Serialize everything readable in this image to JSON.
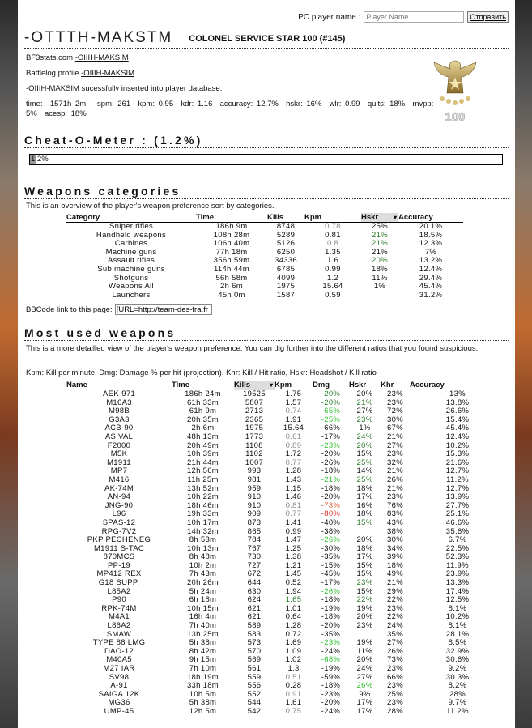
{
  "search": {
    "label": "PC player name :",
    "placeholder": "Player Name",
    "button": "Отправить"
  },
  "player": {
    "name": "-OTTTH-MAKSTM",
    "rank": "COLONEL SERVICE STAR 100 (#145)",
    "bf3stats_label": "BF3stats.com",
    "bf3stats_link": "-OIIIH-MAKSIM",
    "battlelog_label": "Battlelog profile",
    "battlelog_link": "-OIIIH-MAKSIM",
    "insert_msg": "-OIIIH-MAKSIM sucessfully inserted into player database.",
    "stats": "time:  1571h 2m   spm: 261  kpm: 0.95  kdr: 1.16  accuracy: 12.7%  hskr: 16%  wlr: 0.99  quits: 18%  mvpp: 5%  acesp: 18%",
    "medal_number": "100",
    "medal_icon": "colonel-eagle-medal"
  },
  "cheat": {
    "heading": "Cheat-O-Meter : (1.2%)",
    "value_label": "1.2%",
    "percent": 1.2
  },
  "categories": {
    "heading": "Weapons categories",
    "desc": "This is an overview of the player's weapon preference sort by categories.",
    "columns": [
      "Category",
      "Time",
      "Kills",
      "Kpm",
      "Hskr",
      "Accuracy"
    ],
    "sorted_column": "Hskr",
    "rows": [
      {
        "c": [
          "Sniper rifles",
          "186h 9m",
          "8748",
          "0.78",
          "25%",
          "20.1%"
        ],
        "hl": [
          "",
          "",
          "",
          "m",
          "",
          ""
        ]
      },
      {
        "c": [
          "Handheld weapons",
          "108h 28m",
          "5289",
          "0.81",
          "21%",
          "18.5%"
        ],
        "hl": [
          "",
          "",
          "",
          "",
          "dg",
          ""
        ]
      },
      {
        "c": [
          "Carbines",
          "106h 40m",
          "5126",
          "0.8",
          "21%",
          "12.3%"
        ],
        "hl": [
          "",
          "",
          "",
          "m",
          "dg",
          ""
        ]
      },
      {
        "c": [
          "Machine guns",
          "77h 18m",
          "6250",
          "1.35",
          "21%",
          "7%"
        ],
        "hl": [
          "",
          "",
          "",
          "",
          "",
          ""
        ]
      },
      {
        "c": [
          "Assault rifles",
          "356h 59m",
          "34336",
          "1.6",
          "20%",
          "13.2%"
        ],
        "hl": [
          "",
          "",
          "",
          "",
          "dg",
          ""
        ]
      },
      {
        "c": [
          "Sub machine guns",
          "114h 44m",
          "6785",
          "0.99",
          "18%",
          "12.4%"
        ],
        "hl": [
          "",
          "",
          "",
          "",
          "",
          ""
        ]
      },
      {
        "c": [
          "Shotguns",
          "56h 58m",
          "4099",
          "1.2",
          "11%",
          "29.4%"
        ],
        "hl": [
          "",
          "",
          "",
          "",
          "",
          ""
        ]
      },
      {
        "c": [
          "Weapons All",
          "2h 6m",
          "1975",
          "15.64",
          "1%",
          "45.4%"
        ],
        "hl": [
          "",
          "",
          "",
          "",
          "",
          ""
        ]
      },
      {
        "c": [
          "Launchers",
          "45h 0m",
          "1587",
          "0.59",
          "",
          "31.2%"
        ],
        "hl": [
          "",
          "",
          "",
          "",
          "",
          ""
        ]
      }
    ]
  },
  "bbcode": {
    "label": "BBCode link to this page:",
    "value": "[URL=http://team-des-fra.fr"
  },
  "weapons": {
    "heading": "Most used weapons",
    "desc": "This is a more detailled view of the player's weapon preference. You can dig further into the different ratios that you found suspicious.",
    "legend": "Kpm: Kill per minute, Dmg: Damage % per hit (projection), Khr: Kill / Hit ratio, Hskr: Headshot / Kill ratio",
    "columns": [
      "Name",
      "Time",
      "Kills",
      "Kpm",
      "Dmg",
      "Hskr",
      "Khr",
      "Accuracy"
    ],
    "sorted_column": "Kills",
    "rows": [
      {
        "c": [
          "AEK-971",
          "186h 24m",
          "19525",
          "1.75",
          "-20%",
          "20%",
          "23%",
          "13%"
        ],
        "hl": [
          "",
          "",
          "",
          "",
          "dg",
          "",
          "",
          ""
        ]
      },
      {
        "c": [
          "M16A3",
          "61h 33m",
          "5807",
          "1.57",
          "-20%",
          "21%",
          "23%",
          "13.8%"
        ],
        "hl": [
          "",
          "",
          "",
          "",
          "dg",
          "dg",
          "",
          ""
        ]
      },
      {
        "c": [
          "M98B",
          "61h 9m",
          "2713",
          "0.74",
          "-65%",
          "27%",
          "72%",
          "26.6%"
        ],
        "hl": [
          "",
          "",
          "",
          "m",
          "g",
          "",
          "",
          ""
        ]
      },
      {
        "c": [
          "G3A3",
          "20h 35m",
          "2365",
          "1.91",
          "-25%",
          "23%",
          "30%",
          "15.4%"
        ],
        "hl": [
          "",
          "",
          "",
          "",
          "g",
          "dg",
          "",
          ""
        ]
      },
      {
        "c": [
          "ACB-90",
          "2h 6m",
          "1975",
          "15.64",
          "-66%",
          "1%",
          "67%",
          "45.4%"
        ],
        "hl": [
          "",
          "",
          "",
          "",
          "",
          "",
          "",
          ""
        ]
      },
      {
        "c": [
          "AS VAL",
          "48h 13m",
          "1773",
          "0.61",
          "-17%",
          "24%",
          "21%",
          "12.4%"
        ],
        "hl": [
          "",
          "",
          "",
          "m",
          "",
          "dg",
          "",
          ""
        ]
      },
      {
        "c": [
          "F2000",
          "20h 49m",
          "1108",
          "0.89",
          "-23%",
          "20%",
          "27%",
          "10.2%"
        ],
        "hl": [
          "",
          "",
          "",
          "m",
          "g",
          "dg",
          "",
          ""
        ]
      },
      {
        "c": [
          "M5K",
          "10h 39m",
          "1102",
          "1.72",
          "-20%",
          "15%",
          "23%",
          "15.3%"
        ],
        "hl": [
          "",
          "",
          "",
          "",
          "",
          "",
          "",
          ""
        ]
      },
      {
        "c": [
          "M1911",
          "21h 44m",
          "1007",
          "0.77",
          "-26%",
          "25%",
          "32%",
          "21.6%"
        ],
        "hl": [
          "",
          "",
          "",
          "m",
          "",
          "dg",
          "",
          ""
        ]
      },
      {
        "c": [
          "MP7",
          "12h 56m",
          "993",
          "1.28",
          "-18%",
          "14%",
          "21%",
          "12.7%"
        ],
        "hl": [
          "",
          "",
          "",
          "",
          "",
          "",
          "",
          ""
        ]
      },
      {
        "c": [
          "M416",
          "11h 25m",
          "981",
          "1.43",
          "-21%",
          "25%",
          "26%",
          "11.2%"
        ],
        "hl": [
          "",
          "",
          "",
          "",
          "g",
          "dg",
          "",
          ""
        ]
      },
      {
        "c": [
          "AK-74M",
          "13h 52m",
          "959",
          "1.15",
          "-18%",
          "18%",
          "21%",
          "12.7%"
        ],
        "hl": [
          "",
          "",
          "",
          "",
          "",
          "",
          "",
          ""
        ]
      },
      {
        "c": [
          "AN-94",
          "10h 22m",
          "910",
          "1.46",
          "-20%",
          "17%",
          "23%",
          "13.9%"
        ],
        "hl": [
          "",
          "",
          "",
          "",
          "",
          "",
          "",
          ""
        ]
      },
      {
        "c": [
          "JNG-90",
          "18h 46m",
          "910",
          "0.81",
          "-73%",
          "16%",
          "76%",
          "27.7%"
        ],
        "hl": [
          "",
          "",
          "",
          "m",
          "o",
          "",
          "",
          ""
        ]
      },
      {
        "c": [
          "L96",
          "19h 33m",
          "909",
          "0.77",
          "-80%",
          "18%",
          "83%",
          "25.1%"
        ],
        "hl": [
          "",
          "",
          "",
          "m",
          "r",
          "",
          "",
          ""
        ]
      },
      {
        "c": [
          "SPAS-12",
          "10h 17m",
          "873",
          "1.41",
          "-40%",
          "15%",
          "43%",
          "46.6%"
        ],
        "hl": [
          "",
          "",
          "",
          "",
          "",
          "dg",
          "",
          ""
        ]
      },
      {
        "c": [
          "RPG-7V2",
          "14h 32m",
          "865",
          "0.99",
          "-38%",
          "",
          "38%",
          "35.6%"
        ],
        "hl": [
          "",
          "",
          "",
          "",
          "",
          "",
          "",
          ""
        ]
      },
      {
        "c": [
          "PKP PECHENEG",
          "8h 53m",
          "784",
          "1.47",
          "-26%",
          "20%",
          "30%",
          "6.7%"
        ],
        "hl": [
          "",
          "",
          "",
          "",
          "g",
          "",
          "",
          ""
        ]
      },
      {
        "c": [
          "M1911 S-TAC",
          "10h 13m",
          "767",
          "1.25",
          "-30%",
          "18%",
          "34%",
          "22.5%"
        ],
        "hl": [
          "",
          "",
          "",
          "",
          "",
          "",
          "",
          ""
        ]
      },
      {
        "c": [
          "870MCS",
          "8h 48m",
          "730",
          "1.38",
          "-35%",
          "17%",
          "39%",
          "52.3%"
        ],
        "hl": [
          "",
          "",
          "",
          "",
          "",
          "",
          "",
          ""
        ]
      },
      {
        "c": [
          "PP-19",
          "10h 2m",
          "727",
          "1.21",
          "-15%",
          "15%",
          "18%",
          "11.9%"
        ],
        "hl": [
          "",
          "",
          "",
          "",
          "",
          "",
          "",
          ""
        ]
      },
      {
        "c": [
          "MP412 REX",
          "7h 43m",
          "672",
          "1.45",
          "-45%",
          "15%",
          "49%",
          "23.9%"
        ],
        "hl": [
          "",
          "",
          "",
          "",
          "",
          "",
          "",
          ""
        ]
      },
      {
        "c": [
          "G18 SUPP.",
          "20h 26m",
          "644",
          "0.52",
          "-17%",
          "23%",
          "21%",
          "13.3%"
        ],
        "hl": [
          "",
          "",
          "",
          "",
          "",
          "dg",
          "",
          ""
        ]
      },
      {
        "c": [
          "L85A2",
          "5h 24m",
          "630",
          "1.94",
          "-26%",
          "15%",
          "29%",
          "17.4%"
        ],
        "hl": [
          "",
          "",
          "",
          "",
          "g",
          "",
          "",
          ""
        ]
      },
      {
        "c": [
          "P90",
          "6h 18m",
          "624",
          "1.65",
          "-18%",
          "22%",
          "22%",
          "12.5%"
        ],
        "hl": [
          "",
          "",
          "",
          "dg",
          "",
          "dg",
          "",
          ""
        ]
      },
      {
        "c": [
          "RPK-74M",
          "10h 15m",
          "621",
          "1.01",
          "-19%",
          "19%",
          "23%",
          "8.1%"
        ],
        "hl": [
          "",
          "",
          "",
          "",
          "",
          "",
          "",
          ""
        ]
      },
      {
        "c": [
          "M4A1",
          "16h 4m",
          "621",
          "0.64",
          "-18%",
          "20%",
          "22%",
          "10.2%"
        ],
        "hl": [
          "",
          "",
          "",
          "",
          "",
          "",
          "",
          ""
        ]
      },
      {
        "c": [
          "L86A2",
          "7h 40m",
          "589",
          "1.28",
          "-20%",
          "23%",
          "24%",
          "8.1%"
        ],
        "hl": [
          "",
          "",
          "",
          "",
          "",
          "",
          "",
          ""
        ]
      },
      {
        "c": [
          "SMAW",
          "13h 25m",
          "583",
          "0.72",
          "-35%",
          "",
          "35%",
          "28.1%"
        ],
        "hl": [
          "",
          "",
          "",
          "",
          "",
          "",
          "",
          ""
        ]
      },
      {
        "c": [
          "TYPE 88 LMG",
          "5h 38m",
          "573",
          "1.69",
          "-23%",
          "19%",
          "27%",
          "8.5%"
        ],
        "hl": [
          "",
          "",
          "",
          "",
          "g",
          "",
          "",
          ""
        ]
      },
      {
        "c": [
          "DAO-12",
          "8h 42m",
          "570",
          "1.09",
          "-24%",
          "11%",
          "26%",
          "32.9%"
        ],
        "hl": [
          "",
          "",
          "",
          "",
          "",
          "",
          "",
          ""
        ]
      },
      {
        "c": [
          "M40A5",
          "9h 15m",
          "569",
          "1.02",
          "-68%",
          "20%",
          "73%",
          "30.6%"
        ],
        "hl": [
          "",
          "",
          "",
          "",
          "g",
          "",
          "",
          ""
        ]
      },
      {
        "c": [
          "M27 IAR",
          "7h 10m",
          "561",
          "1.3",
          "-19%",
          "24%",
          "23%",
          "9.2%"
        ],
        "hl": [
          "",
          "",
          "",
          "",
          "",
          "",
          "",
          ""
        ]
      },
      {
        "c": [
          "SV98",
          "18h 19m",
          "559",
          "0.51",
          "-59%",
          "27%",
          "66%",
          "30.3%"
        ],
        "hl": [
          "",
          "",
          "",
          "m",
          "",
          "",
          "",
          ""
        ]
      },
      {
        "c": [
          "A-91",
          "33h 18m",
          "556",
          "0.28",
          "-18%",
          "26%",
          "23%",
          "8.2%"
        ],
        "hl": [
          "",
          "",
          "",
          "",
          "",
          "g",
          "",
          ""
        ]
      },
      {
        "c": [
          "SAIGA 12K",
          "10h 5m",
          "552",
          "0.91",
          "-23%",
          "9%",
          "25%",
          "28%"
        ],
        "hl": [
          "",
          "",
          "",
          "m",
          "",
          "",
          "",
          ""
        ]
      },
      {
        "c": [
          "MG36",
          "5h 38m",
          "544",
          "1.61",
          "-20%",
          "17%",
          "23%",
          "9.7%"
        ],
        "hl": [
          "",
          "",
          "",
          "",
          "",
          "",
          "",
          ""
        ]
      },
      {
        "c": [
          "UMP-45",
          "12h 5m",
          "542",
          "0.75",
          "-24%",
          "17%",
          "28%",
          "11.2%"
        ],
        "hl": [
          "",
          "",
          "",
          "m",
          "",
          "",
          "",
          ""
        ]
      }
    ]
  }
}
